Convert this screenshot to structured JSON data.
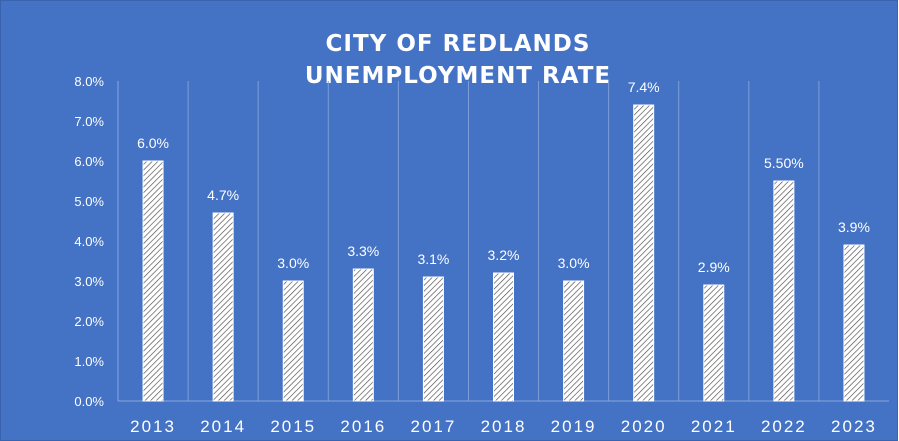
{
  "chart_data": {
    "type": "bar",
    "title": [
      "CITY OF REDLANDS",
      "UNEMPLOYMENT  RATE"
    ],
    "categories": [
      "2013",
      "2014",
      "2015",
      "2016",
      "2017",
      "2018",
      "2019",
      "2020",
      "2021",
      "2022",
      "2023"
    ],
    "values": [
      6.0,
      4.7,
      3.0,
      3.3,
      3.1,
      3.2,
      3.0,
      7.4,
      2.9,
      5.5,
      3.9
    ],
    "data_labels": [
      "6.0%",
      "4.7%",
      "3.0%",
      "3.3%",
      "3.1%",
      "3.2%",
      "3.0%",
      "7.4%",
      "2.9%",
      "5.50%",
      "3.9%"
    ],
    "y_ticks": [
      "0.0%",
      "1.0%",
      "2.0%",
      "3.0%",
      "4.0%",
      "5.0%",
      "6.0%",
      "7.0%",
      "8.0%"
    ],
    "ylim": [
      0,
      8
    ],
    "xlabel": "",
    "ylabel": "",
    "grid": "vertical",
    "legend": "none",
    "colors": {
      "background": "#4472c4",
      "bar_fill": "#ffffff",
      "bar_pattern": "diagonal-hatch",
      "text": "#ffffff"
    }
  }
}
